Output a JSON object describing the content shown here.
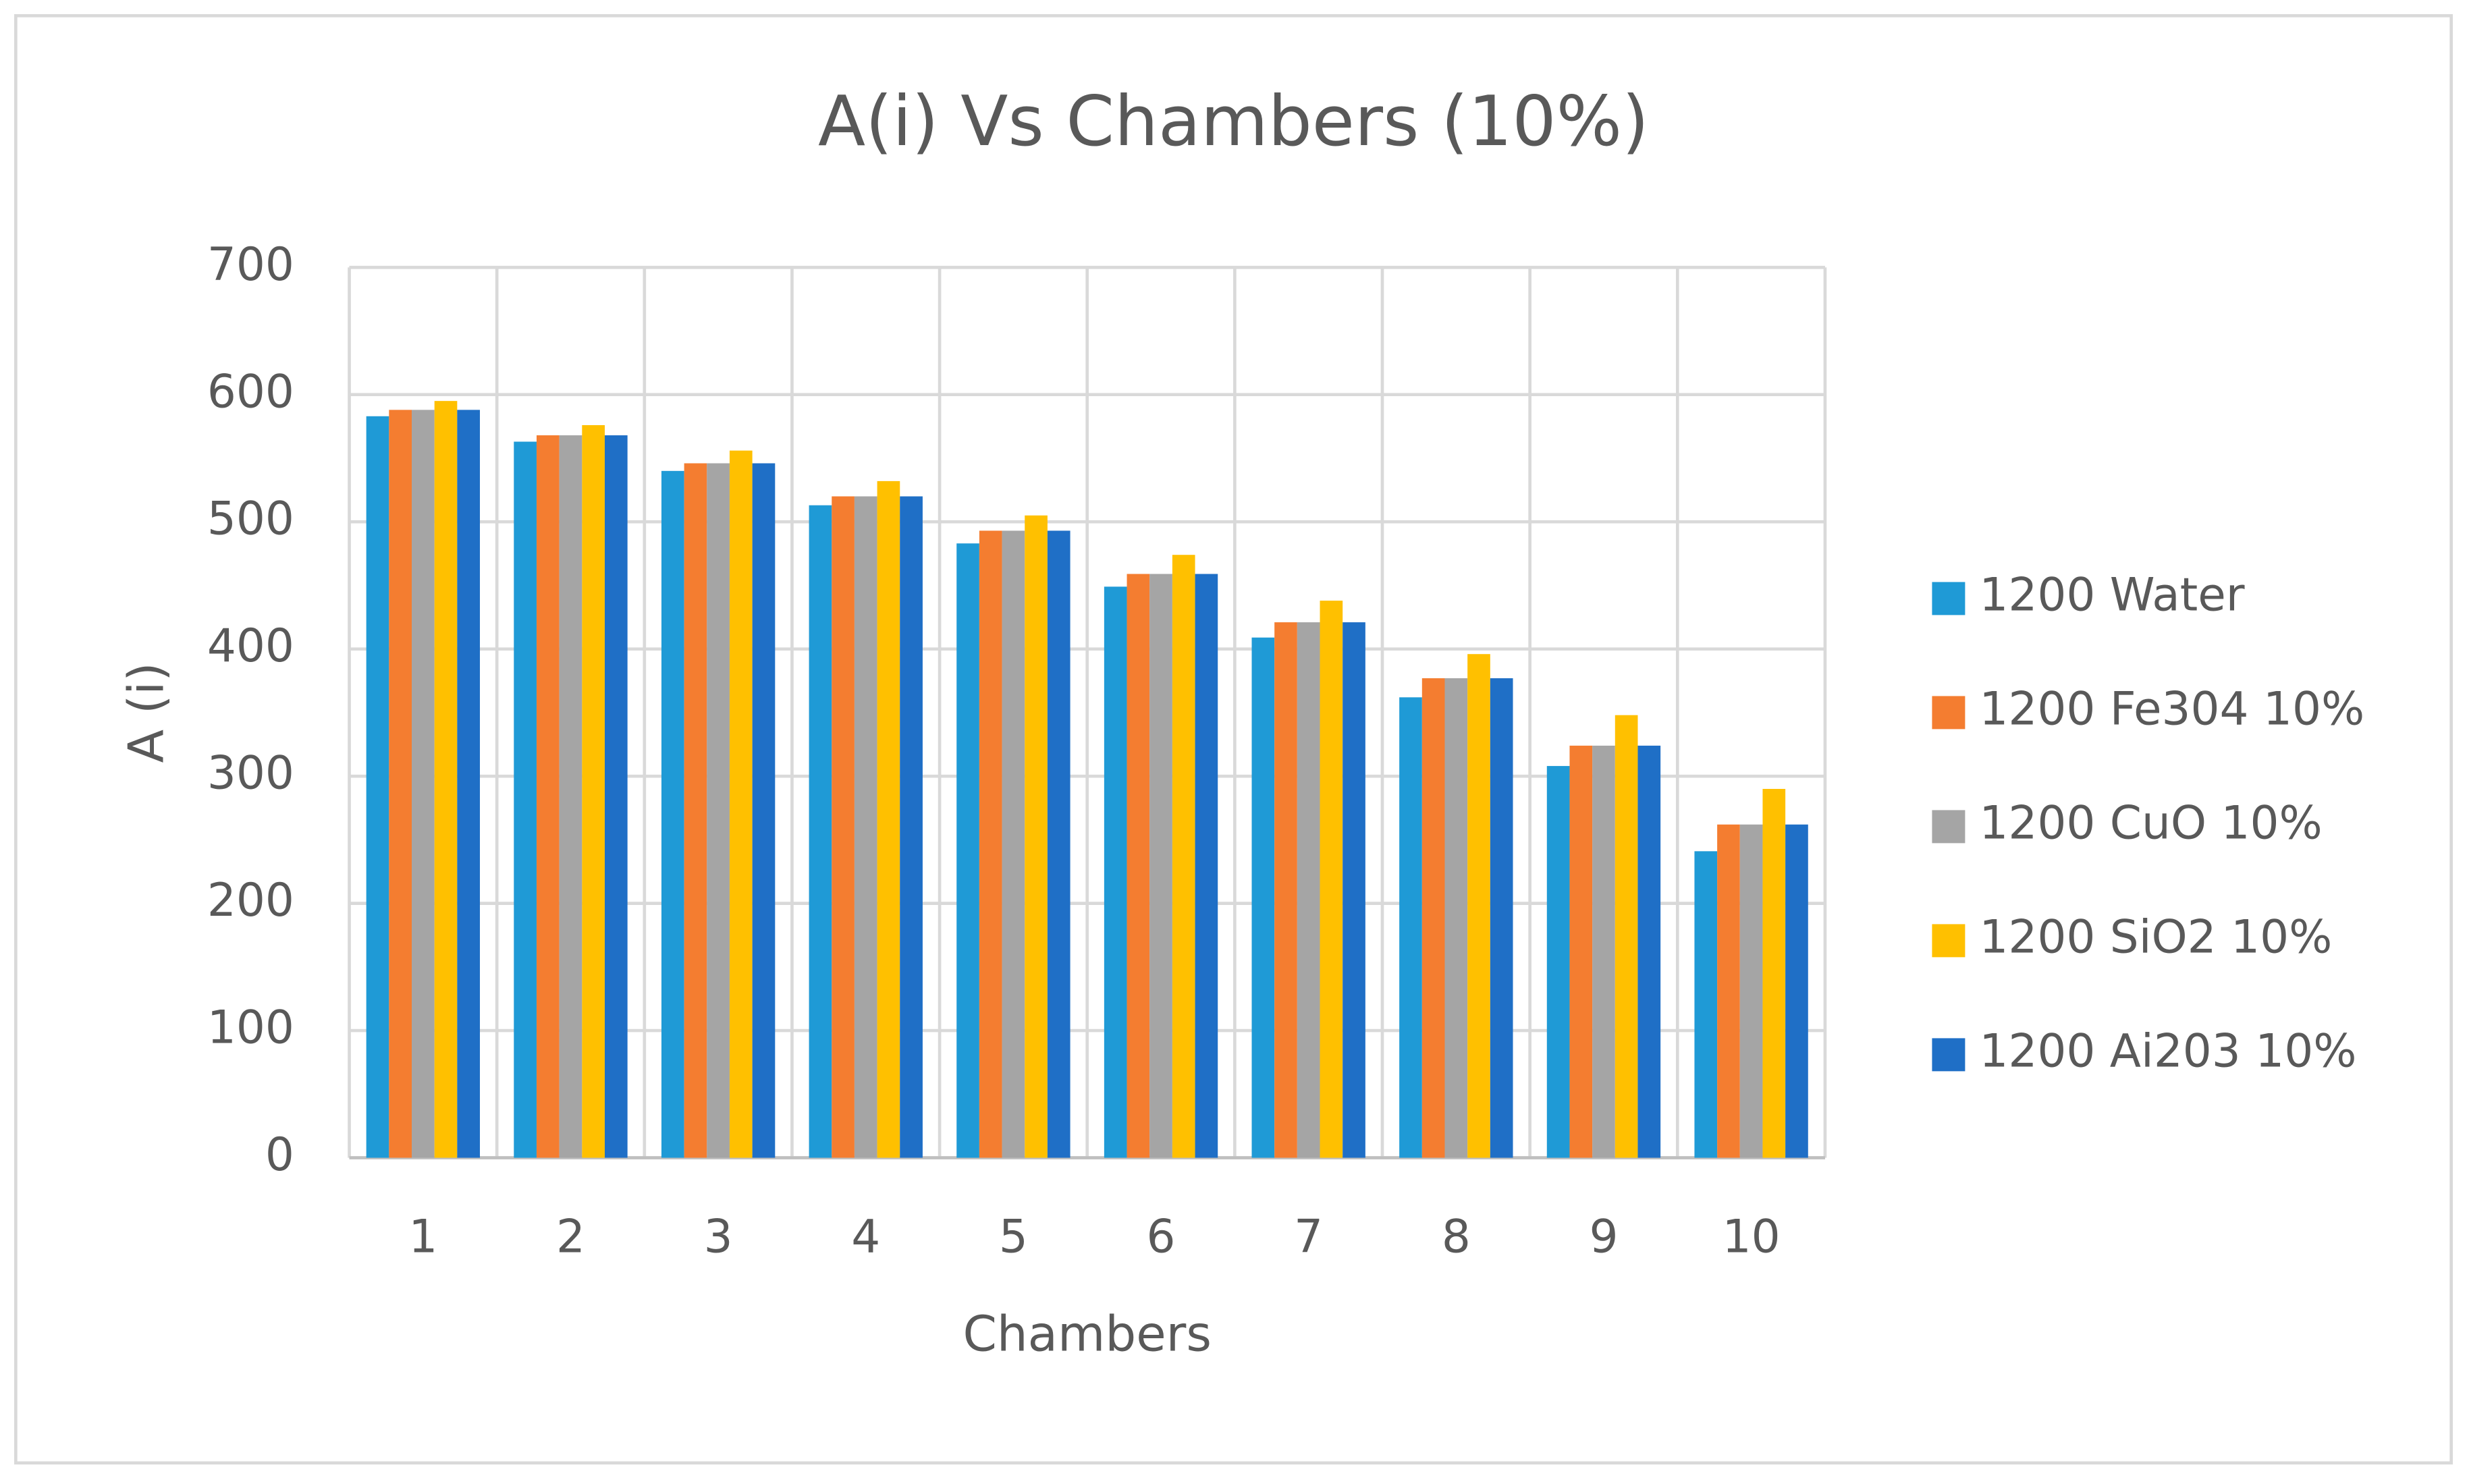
{
  "chart_data": {
    "type": "bar",
    "title": "A(i) Vs Chambers (10%)",
    "x_label": "Chambers",
    "y_label": "A (i)",
    "categories": [
      "1",
      "2",
      "3",
      "4",
      "5",
      "6",
      "7",
      "8",
      "9",
      "10"
    ],
    "series": [
      {
        "name": "1200 Water",
        "color": "#1f9ad6",
        "values": [
          583,
          563,
          540,
          513,
          483,
          449,
          409,
          362,
          308,
          241
        ]
      },
      {
        "name": "1200 Fe304 10%",
        "color": "#f47d30",
        "values": [
          588,
          568,
          546,
          520,
          493,
          459,
          421,
          377,
          324,
          262
        ]
      },
      {
        "name": "1200 CuO 10%",
        "color": "#a5a5a5",
        "values": [
          588,
          568,
          546,
          520,
          493,
          459,
          421,
          377,
          324,
          262
        ]
      },
      {
        "name": "1200 SiO2 10%",
        "color": "#ffc000",
        "values": [
          595,
          576,
          556,
          532,
          505,
          474,
          438,
          396,
          348,
          290
        ]
      },
      {
        "name": "1200 Ai203 10%",
        "color": "#1f6fc6",
        "values": [
          588,
          568,
          546,
          520,
          493,
          459,
          421,
          377,
          324,
          262
        ]
      }
    ],
    "ylim": [
      0,
      700
    ],
    "yticks": [
      0,
      100,
      200,
      300,
      400,
      500,
      600,
      700
    ],
    "grid": true,
    "legend": "right"
  }
}
